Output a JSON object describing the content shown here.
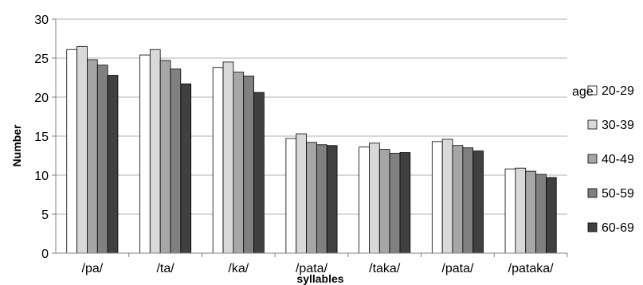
{
  "chart_data": {
    "type": "bar",
    "title": "",
    "xlabel": "syllables",
    "ylabel": "Number",
    "ylim": [
      0,
      30
    ],
    "yticks": [
      0,
      5,
      10,
      15,
      20,
      25,
      30
    ],
    "grid": true,
    "legend_position": "right",
    "legend_title": "age",
    "categories": [
      "/pa/",
      "/ta/",
      "/ka/",
      "/pata/",
      "/taka/",
      "/pata/",
      "/pataka/"
    ],
    "series": [
      {
        "name": "20-29",
        "color": "#ffffff",
        "values": [
          26.1,
          25.4,
          23.8,
          14.7,
          13.6,
          14.3,
          10.8
        ]
      },
      {
        "name": "30-39",
        "color": "#d9d9d9",
        "values": [
          26.5,
          26.1,
          24.5,
          15.3,
          14.1,
          14.6,
          10.9
        ]
      },
      {
        "name": "40-49",
        "color": "#a6a6a6",
        "values": [
          24.8,
          24.7,
          23.2,
          14.2,
          13.3,
          13.8,
          10.5
        ]
      },
      {
        "name": "50-59",
        "color": "#808080",
        "values": [
          24.1,
          23.6,
          22.7,
          13.9,
          12.8,
          13.5,
          10.1
        ]
      },
      {
        "name": "60-69",
        "color": "#404040",
        "values": [
          22.8,
          21.7,
          20.6,
          13.8,
          12.9,
          13.1,
          9.7
        ]
      }
    ]
  }
}
